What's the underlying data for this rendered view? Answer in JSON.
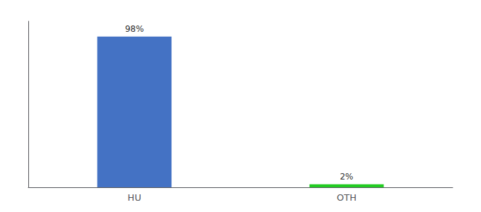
{
  "chart_data": {
    "type": "bar",
    "categories": [
      "HU",
      "OTH"
    ],
    "values": [
      98,
      2
    ],
    "colors": [
      "#4472c4",
      "#22cc22"
    ],
    "data_labels": true,
    "value_labels": [
      "98%",
      "2%"
    ],
    "ylim": [
      0,
      108
    ],
    "tick_labels": "x",
    "grid": false
  }
}
